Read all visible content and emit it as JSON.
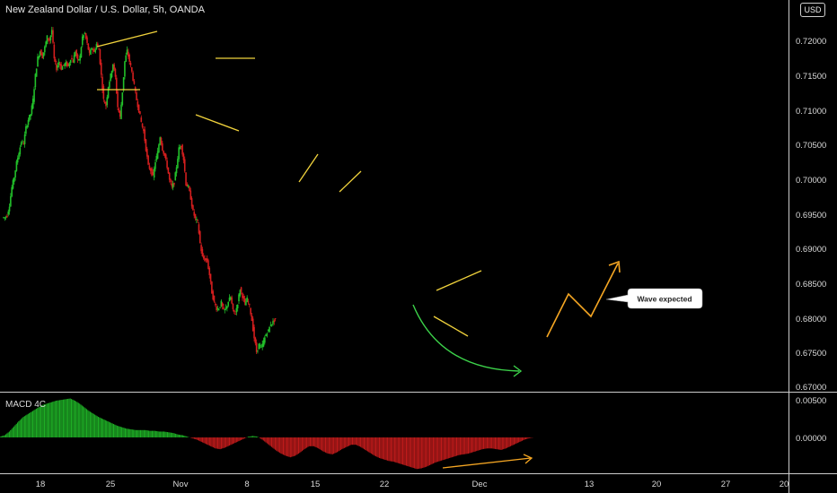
{
  "title": "New Zealand Dollar / U.S. Dollar, 5h, OANDA",
  "currency_badge": "USD",
  "macd_title": "MACD 4C",
  "annotation": "Wave expected",
  "colors": {
    "background": "#000000",
    "up": "#22c02a",
    "down": "#d41e1e",
    "pattern_lines": "#f0d23c",
    "projection": "#f5a623",
    "curve": "#3cd24a",
    "axis_text": "#d9d9d9",
    "divider": "#cccccc"
  },
  "chart_data": [
    {
      "type": "line",
      "title": "New Zealand Dollar / U.S. Dollar, 5h, OANDA",
      "y_axis_ticks": [
        "0.72000",
        "0.71500",
        "0.71000",
        "0.70500",
        "0.70000",
        "0.69500",
        "0.69000",
        "0.68500",
        "0.68000",
        "0.67500",
        "0.67000"
      ],
      "x_axis_ticks": [
        "18",
        "25",
        "Nov",
        "8",
        "15",
        "22",
        "Dec",
        "13",
        "20",
        "27",
        "20"
      ],
      "ylim": [
        0.6698,
        0.724
      ],
      "x": [
        0,
        2,
        4,
        6,
        8,
        10,
        12,
        14,
        16,
        18,
        20,
        22,
        24,
        26,
        28,
        30,
        32,
        34,
        36,
        38,
        40,
        42,
        44,
        46,
        48,
        50,
        52,
        54,
        56,
        58,
        60,
        62,
        64,
        66,
        68,
        70,
        72,
        74,
        76,
        78,
        80,
        82,
        84,
        86,
        88,
        90,
        92,
        94,
        96,
        98,
        100,
        102,
        104,
        106,
        108,
        110,
        112,
        114,
        116,
        118,
        120,
        122,
        124,
        126,
        128,
        130,
        132,
        134,
        136,
        138,
        140,
        142,
        144,
        146,
        148,
        150,
        152,
        154,
        156,
        158,
        160,
        162,
        164,
        166,
        168,
        170,
        172,
        174,
        176,
        178,
        180,
        182,
        184,
        186,
        188,
        190,
        192,
        194,
        196,
        198,
        200,
        202,
        204,
        206,
        208,
        210,
        212,
        214,
        216,
        218,
        220,
        222,
        224,
        226,
        228,
        230
      ],
      "series": [
        {
          "values": [
            0.6942,
            0.6945,
            0.696,
            0.6985,
            0.7,
            0.702,
            0.7035,
            0.705,
            0.7048,
            0.707,
            0.7082,
            0.709,
            0.711,
            0.7145,
            0.717,
            0.718,
            0.7172,
            0.7185,
            0.72,
            0.7195,
            0.721,
            0.7168,
            0.7155,
            0.7165,
            0.7155,
            0.716,
            0.7162,
            0.7158,
            0.717,
            0.7165,
            0.718,
            0.7165,
            0.7172,
            0.72,
            0.7205,
            0.719,
            0.7175,
            0.7185,
            0.7178,
            0.719,
            0.7182,
            0.7145,
            0.711,
            0.7102,
            0.713,
            0.7145,
            0.7162,
            0.7142,
            0.71,
            0.7085,
            0.7122,
            0.7165,
            0.718,
            0.7165,
            0.715,
            0.713,
            0.711,
            0.7095,
            0.7078,
            0.7065,
            0.704,
            0.7015,
            0.701,
            0.7,
            0.7022,
            0.7035,
            0.7058,
            0.704,
            0.703,
            0.7015,
            0.6995,
            0.6985,
            0.6992,
            0.7015,
            0.704,
            0.7045,
            0.7025,
            0.699,
            0.6985,
            0.697,
            0.695,
            0.694,
            0.6935,
            0.6905,
            0.6885,
            0.6882,
            0.688,
            0.686,
            0.6835,
            0.682,
            0.6812,
            0.6812,
            0.682,
            0.6808,
            0.6812,
            0.6822,
            0.6828,
            0.6808,
            0.6805,
            0.682,
            0.684,
            0.683,
            0.6818,
            0.6825,
            0.6815,
            0.6795,
            0.677,
            0.675,
            0.676,
            0.6755,
            0.6765,
            0.6775,
            0.678,
            0.679,
            0.6792,
            0.6798
          ]
        }
      ]
    },
    {
      "type": "bar",
      "title": "MACD 4C",
      "y_axis_ticks": [
        "0.00500",
        "0.00000"
      ],
      "ylim": [
        -0.0045,
        0.0058
      ],
      "values": [
        0.0001,
        0.0003,
        0.0008,
        0.0015,
        0.0022,
        0.0028,
        0.0032,
        0.0036,
        0.004,
        0.0044,
        0.0046,
        0.0048,
        0.005,
        0.0051,
        0.0052,
        0.0053,
        0.005,
        0.0046,
        0.0041,
        0.0036,
        0.0032,
        0.0028,
        0.0025,
        0.0022,
        0.0019,
        0.0016,
        0.0014,
        0.0012,
        0.0011,
        0.001,
        0.001,
        0.001,
        0.0009,
        0.0009,
        0.0008,
        0.0008,
        0.0007,
        0.0006,
        0.0004,
        0.0003,
        0.0001,
        -0.0001,
        -0.0003,
        -0.0006,
        -0.0009,
        -0.0012,
        -0.0015,
        -0.0016,
        -0.0014,
        -0.0011,
        -0.0008,
        -0.0005,
        -0.0002,
        0.0001,
        0.0002,
        0.0001,
        -0.0003,
        -0.0008,
        -0.0013,
        -0.0018,
        -0.0022,
        -0.0025,
        -0.0027,
        -0.0025,
        -0.0021,
        -0.0016,
        -0.0012,
        -0.0012,
        -0.0015,
        -0.0019,
        -0.0022,
        -0.0023,
        -0.002,
        -0.0016,
        -0.0013,
        -0.001,
        -0.001,
        -0.0013,
        -0.0017,
        -0.0021,
        -0.0025,
        -0.0028,
        -0.003,
        -0.0032,
        -0.0033,
        -0.0035,
        -0.0037,
        -0.0039,
        -0.0041,
        -0.0043,
        -0.0042,
        -0.004,
        -0.0037,
        -0.0034,
        -0.0032,
        -0.003,
        -0.0028,
        -0.0026,
        -0.0024,
        -0.0023,
        -0.0022,
        -0.002,
        -0.0018,
        -0.0016,
        -0.0015,
        -0.0015,
        -0.0016,
        -0.0017,
        -0.0015,
        -0.0012,
        -0.0009,
        -0.0006,
        -0.0003,
        -0.0001,
        0.0,
        0.0
      ]
    }
  ]
}
